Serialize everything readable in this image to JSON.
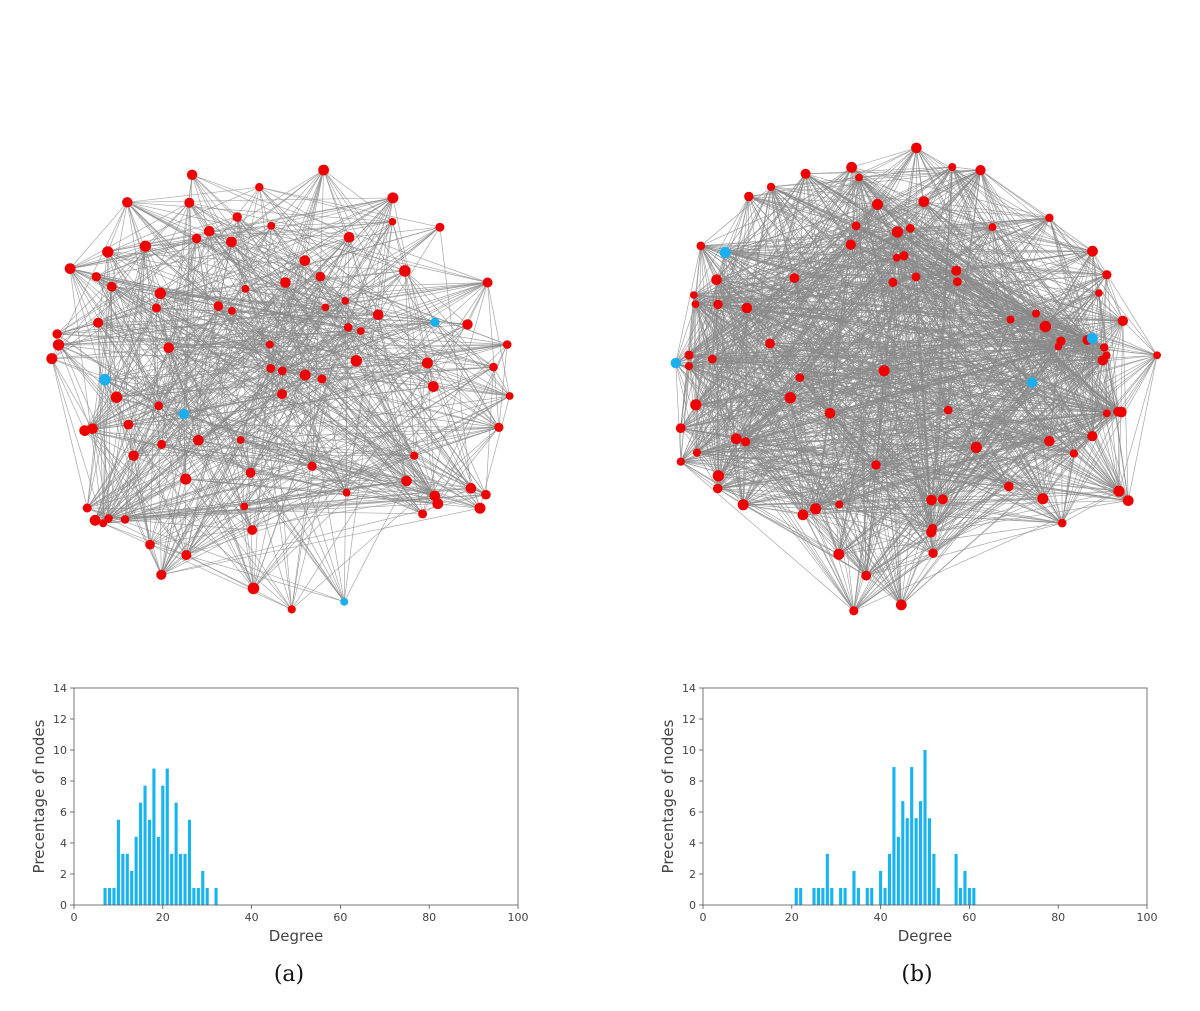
{
  "colors": {
    "node": "#ee0000",
    "highlight": "#1ab0f0",
    "edge": "#8a8a8a",
    "bar": "#18b4ef",
    "axis": "#555555"
  },
  "captions": {
    "a": "(a)",
    "b": "(b)"
  },
  "chart_data": [
    {
      "type": "bar",
      "panel": "a",
      "title": "",
      "xlabel": "Degree",
      "ylabel": "Precentage of nodes",
      "xlim": [
        0,
        100
      ],
      "ylim": [
        0,
        14
      ],
      "xticks": [
        0,
        20,
        40,
        60,
        80,
        100
      ],
      "yticks": [
        0,
        2,
        4,
        6,
        8,
        10,
        12,
        14
      ],
      "x": [
        7,
        8,
        9,
        10,
        11,
        12,
        13,
        14,
        15,
        16,
        17,
        18,
        19,
        20,
        21,
        22,
        23,
        24,
        25,
        26,
        27,
        28,
        29,
        30,
        32
      ],
      "values": [
        1.1,
        1.1,
        1.1,
        5.5,
        3.3,
        3.3,
        2.2,
        4.4,
        6.6,
        7.7,
        5.5,
        8.8,
        4.4,
        7.7,
        8.8,
        3.3,
        6.6,
        3.3,
        3.3,
        5.5,
        1.1,
        1.1,
        2.2,
        1.1,
        1.1
      ]
    },
    {
      "type": "bar",
      "panel": "b",
      "title": "",
      "xlabel": "Degree",
      "ylabel": "Precentage of nodes",
      "xlim": [
        0,
        100
      ],
      "ylim": [
        0,
        14
      ],
      "xticks": [
        0,
        20,
        40,
        60,
        80,
        100
      ],
      "yticks": [
        0,
        2,
        4,
        6,
        8,
        10,
        12,
        14
      ],
      "x": [
        21,
        22,
        25,
        26,
        27,
        28,
        29,
        31,
        32,
        34,
        35,
        37,
        38,
        40,
        41,
        42,
        43,
        44,
        45,
        46,
        47,
        48,
        49,
        50,
        51,
        52,
        53,
        57,
        58,
        59,
        60,
        61
      ],
      "values": [
        1.1,
        1.1,
        1.1,
        1.1,
        1.1,
        3.3,
        1.1,
        1.1,
        1.1,
        2.2,
        1.1,
        1.1,
        1.1,
        2.2,
        1.1,
        3.3,
        8.9,
        4.4,
        6.7,
        5.6,
        8.9,
        5.6,
        6.7,
        10.0,
        5.6,
        3.3,
        1.1,
        3.3,
        1.1,
        2.2,
        1.1,
        1.1
      ]
    }
  ]
}
